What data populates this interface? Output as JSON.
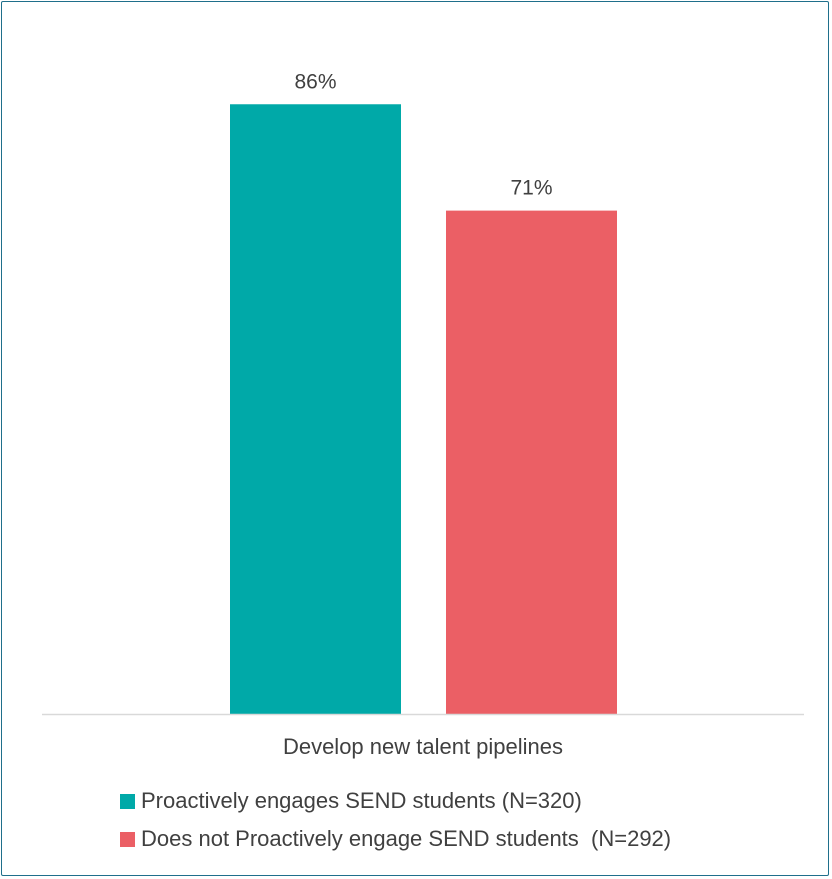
{
  "chart_data": {
    "type": "bar",
    "categories": [
      "Develop new talent pipelines"
    ],
    "series": [
      {
        "name": "Proactively engages SEND students (N=320)",
        "values": [
          86
        ],
        "labels": [
          "86%"
        ],
        "color": "#00A9A8"
      },
      {
        "name": "Does not Proactively engage SEND students  (N=292)",
        "values": [
          71
        ],
        "labels": [
          "71%"
        ],
        "color": "#EB5F65"
      }
    ],
    "ylim": [
      0,
      100
    ],
    "legend_position": "bottom",
    "grid": false,
    "axis_color": "#d9d9d9"
  }
}
